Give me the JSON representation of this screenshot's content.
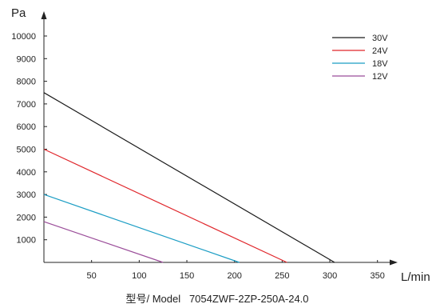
{
  "chart_data": {
    "type": "line",
    "title": "",
    "xlabel": "L/min",
    "ylabel": "Pa",
    "xlim": [
      0,
      380
    ],
    "ylim": [
      0,
      10500
    ],
    "x_ticks": [
      50,
      100,
      150,
      200,
      250,
      300,
      350
    ],
    "y_ticks": [
      1000,
      2000,
      3000,
      4000,
      5000,
      6000,
      7000,
      8000,
      9000,
      10000
    ],
    "grid": false,
    "legend_position": "top-right",
    "series": [
      {
        "name": "30V",
        "color": "#1a1a1a",
        "points": [
          [
            0,
            7500
          ],
          [
            305,
            0
          ]
        ]
      },
      {
        "name": "24V",
        "color": "#e0262b",
        "points": [
          [
            0,
            5000
          ],
          [
            255,
            0
          ]
        ]
      },
      {
        "name": "18V",
        "color": "#1b9dc4",
        "points": [
          [
            0,
            3000
          ],
          [
            205,
            0
          ]
        ]
      },
      {
        "name": "12V",
        "color": "#9b4e9a",
        "points": [
          [
            0,
            1800
          ],
          [
            125,
            0
          ]
        ]
      }
    ],
    "caption": "型号/ Model   7054ZWF-2ZP-250A-24.0"
  }
}
